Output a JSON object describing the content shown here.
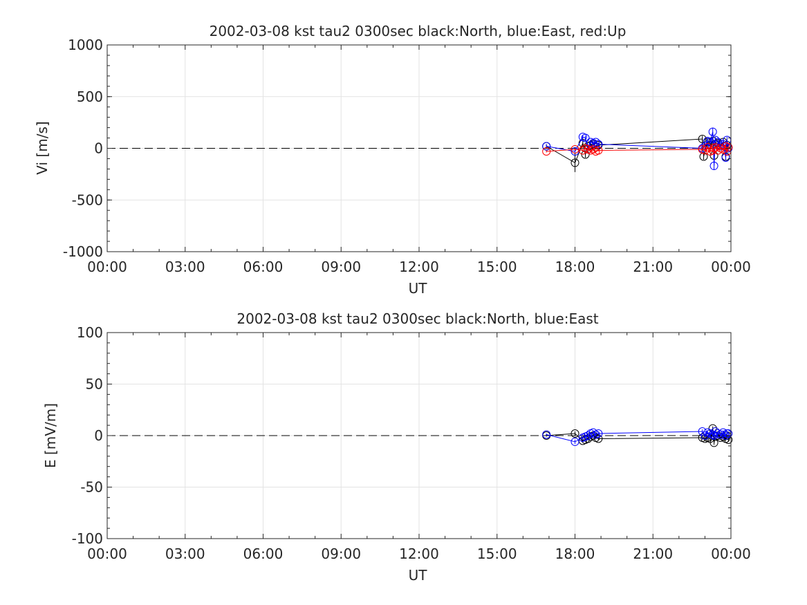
{
  "chart_data": [
    {
      "type": "line",
      "title": "2002-03-08 kst tau2 0300sec black:North, blue:East, red:Up",
      "xlabel": "UT",
      "ylabel": "Vi [m/s]",
      "xlim": [
        0,
        24
      ],
      "ylim": [
        -1000,
        1000
      ],
      "xticks": [
        "00:00",
        "03:00",
        "06:00",
        "09:00",
        "12:00",
        "15:00",
        "18:00",
        "21:00",
        "00:00"
      ],
      "yticks": [
        "1000",
        "500",
        "0",
        "-500",
        "-1000"
      ],
      "grid": true,
      "reference_line": {
        "y": 0,
        "style": "dashed",
        "color": "#000000"
      },
      "series": [
        {
          "color": "#000000",
          "x": [
            16.9,
            18.0,
            18.3,
            18.4,
            18.5,
            18.6,
            18.7,
            18.8,
            18.9,
            22.9,
            22.95,
            23.1,
            23.2,
            23.3,
            23.35,
            23.4,
            23.5,
            23.6,
            23.7,
            23.8,
            23.85,
            23.9
          ],
          "y": [
            20,
            -140,
            50,
            -60,
            20,
            30,
            40,
            10,
            30,
            90,
            -80,
            60,
            30,
            70,
            -70,
            40,
            50,
            20,
            60,
            -80,
            30,
            10
          ],
          "yerr": [
            20,
            90,
            30,
            30,
            20,
            20,
            20,
            20,
            20,
            30,
            30,
            30,
            30,
            30,
            30,
            30,
            30,
            30,
            30,
            30,
            30,
            30
          ]
        },
        {
          "color": "#0000ff",
          "x": [
            16.9,
            18.0,
            18.3,
            18.4,
            18.5,
            18.6,
            18.7,
            18.8,
            18.9,
            22.9,
            23.0,
            23.1,
            23.2,
            23.3,
            23.35,
            23.4,
            23.5,
            23.6,
            23.7,
            23.8,
            23.85,
            23.9
          ],
          "y": [
            20,
            -30,
            110,
            100,
            -10,
            60,
            50,
            60,
            40,
            0,
            20,
            70,
            60,
            160,
            -170,
            80,
            60,
            20,
            40,
            -90,
            80,
            0
          ],
          "yerr": [
            20,
            20,
            20,
            20,
            20,
            20,
            20,
            20,
            20,
            30,
            30,
            30,
            30,
            40,
            40,
            30,
            30,
            30,
            30,
            30,
            30,
            30
          ]
        },
        {
          "color": "#ff0000",
          "x": [
            16.9,
            18.0,
            18.3,
            18.4,
            18.5,
            18.6,
            18.7,
            18.8,
            18.9,
            22.9,
            23.0,
            23.1,
            23.2,
            23.3,
            23.35,
            23.4,
            23.5,
            23.6,
            23.7,
            23.8,
            23.85,
            23.9
          ],
          "y": [
            -30,
            -10,
            -20,
            0,
            -10,
            -20,
            -10,
            -30,
            -20,
            -10,
            -20,
            10,
            -30,
            -20,
            0,
            10,
            -20,
            0,
            -10,
            20,
            -30,
            10
          ],
          "yerr": [
            10,
            10,
            10,
            10,
            10,
            10,
            10,
            10,
            10,
            10,
            10,
            10,
            10,
            10,
            10,
            10,
            10,
            10,
            10,
            10,
            10,
            10
          ]
        }
      ]
    },
    {
      "type": "line",
      "title": "2002-03-08 kst tau2 0300sec black:North, blue:East",
      "xlabel": "UT",
      "ylabel": "E [mV/m]",
      "xlim": [
        0,
        24
      ],
      "ylim": [
        -100,
        100
      ],
      "xticks": [
        "00:00",
        "03:00",
        "06:00",
        "09:00",
        "12:00",
        "15:00",
        "18:00",
        "21:00",
        "00:00"
      ],
      "yticks": [
        "100",
        "50",
        "0",
        "-50",
        "-100"
      ],
      "grid": true,
      "reference_line": {
        "y": 0,
        "style": "dashed",
        "color": "#000000"
      },
      "series": [
        {
          "color": "#000000",
          "x": [
            16.9,
            18.0,
            18.3,
            18.4,
            18.5,
            18.6,
            18.7,
            18.8,
            18.9,
            22.9,
            23.0,
            23.1,
            23.2,
            23.3,
            23.35,
            23.4,
            23.5,
            23.6,
            23.7,
            23.8,
            23.85,
            23.9
          ],
          "y": [
            0,
            2,
            -5,
            -4,
            -3,
            -1,
            0,
            -2,
            -3,
            -2,
            -3,
            -2,
            -3,
            7,
            -7,
            -1,
            0,
            -2,
            -1,
            -3,
            0,
            -4
          ],
          "yerr": [
            1,
            2,
            1,
            1,
            1,
            1,
            1,
            1,
            1,
            2,
            2,
            2,
            2,
            2,
            2,
            2,
            2,
            2,
            2,
            2,
            2,
            2
          ]
        },
        {
          "color": "#0000ff",
          "x": [
            16.9,
            18.0,
            18.3,
            18.4,
            18.5,
            18.6,
            18.7,
            18.8,
            18.9,
            22.9,
            23.0,
            23.1,
            23.2,
            23.3,
            23.35,
            23.4,
            23.5,
            23.6,
            23.7,
            23.8,
            23.85,
            23.9
          ],
          "y": [
            1,
            -6,
            -2,
            -1,
            0,
            2,
            3,
            1,
            2,
            4,
            0,
            3,
            2,
            1,
            0,
            4,
            2,
            1,
            3,
            0,
            2,
            2
          ],
          "yerr": [
            1,
            2,
            1,
            1,
            1,
            1,
            1,
            1,
            1,
            2,
            2,
            2,
            2,
            2,
            2,
            2,
            2,
            2,
            2,
            2,
            2,
            2
          ]
        }
      ]
    }
  ]
}
